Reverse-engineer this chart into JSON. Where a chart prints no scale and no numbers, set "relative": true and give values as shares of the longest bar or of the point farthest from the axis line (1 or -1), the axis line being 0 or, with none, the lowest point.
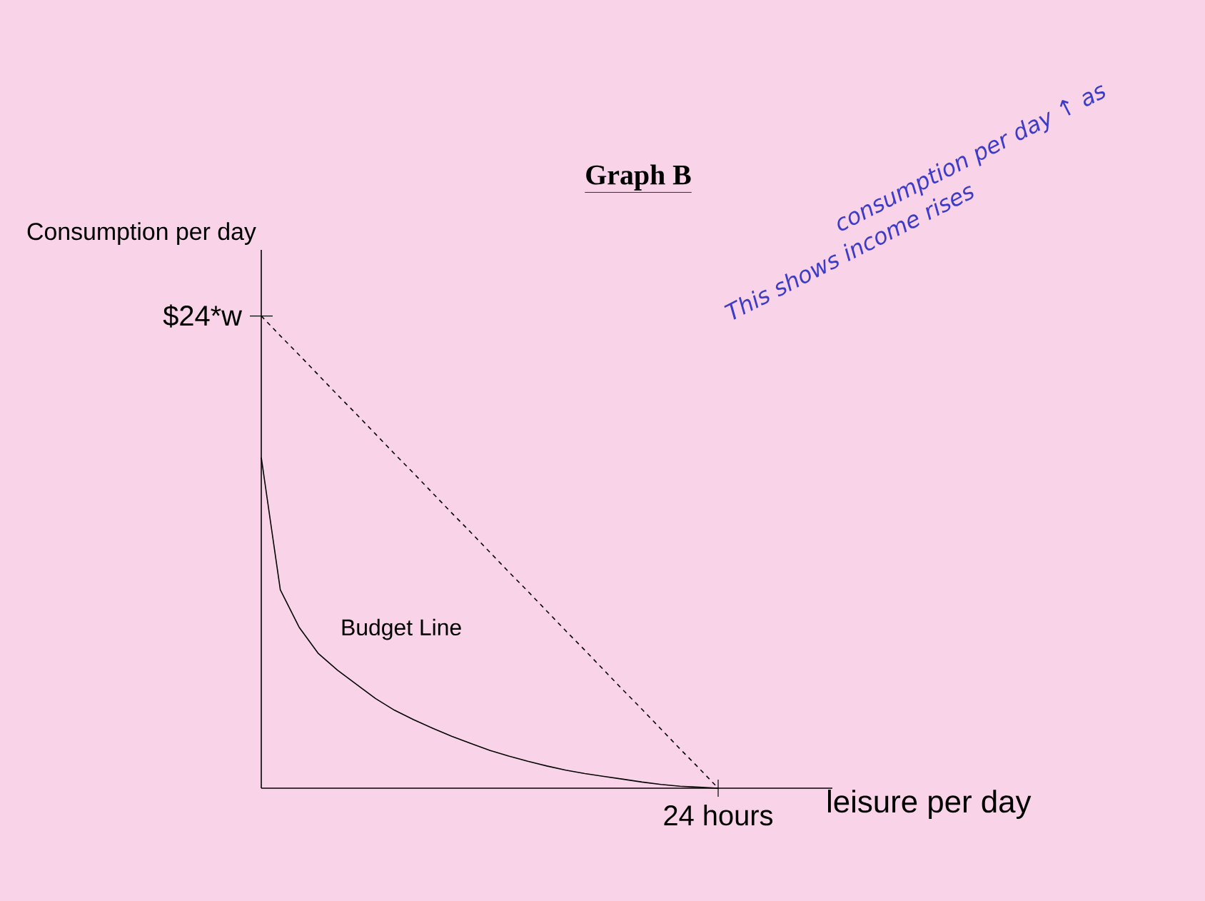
{
  "chart_data": {
    "type": "line",
    "title": "Graph B",
    "xlabel": "leisure per day",
    "ylabel": "Consumption per day",
    "relative": true,
    "marker": "none",
    "categories": [
      null,
      null,
      null,
      null,
      null,
      null,
      null,
      null,
      null,
      null,
      null,
      null,
      null,
      null,
      null,
      null,
      null,
      null,
      null,
      null,
      null,
      null,
      null,
      null,
      null
    ],
    "series": [
      {
        "color": "#000000",
        "line_style": "solid",
        "values": [
          0.7,
          0.42,
          0.34,
          0.285,
          0.25,
          0.22,
          0.19,
          0.165,
          0.145,
          0.127,
          0.11,
          0.095,
          0.08,
          0.068,
          0.057,
          0.047,
          0.038,
          0.031,
          0.025,
          0.019,
          0.013,
          0.008,
          0.004,
          0.002,
          0
        ]
      },
      {
        "color": "#000000",
        "line_style": "dashed",
        "values": [
          1,
          0.958,
          0.917,
          0.875,
          0.833,
          0.792,
          0.75,
          0.708,
          0.667,
          0.625,
          0.583,
          0.542,
          0.5,
          0.458,
          0.417,
          0.375,
          0.333,
          0.292,
          0.25,
          0.208,
          0.167,
          0.125,
          0.083,
          0.042,
          0
        ]
      }
    ],
    "annotations": [
      "$24*w",
      "Budget Line",
      "24 hours",
      "consumption per day ↑ as",
      "This shows income rises"
    ]
  }
}
